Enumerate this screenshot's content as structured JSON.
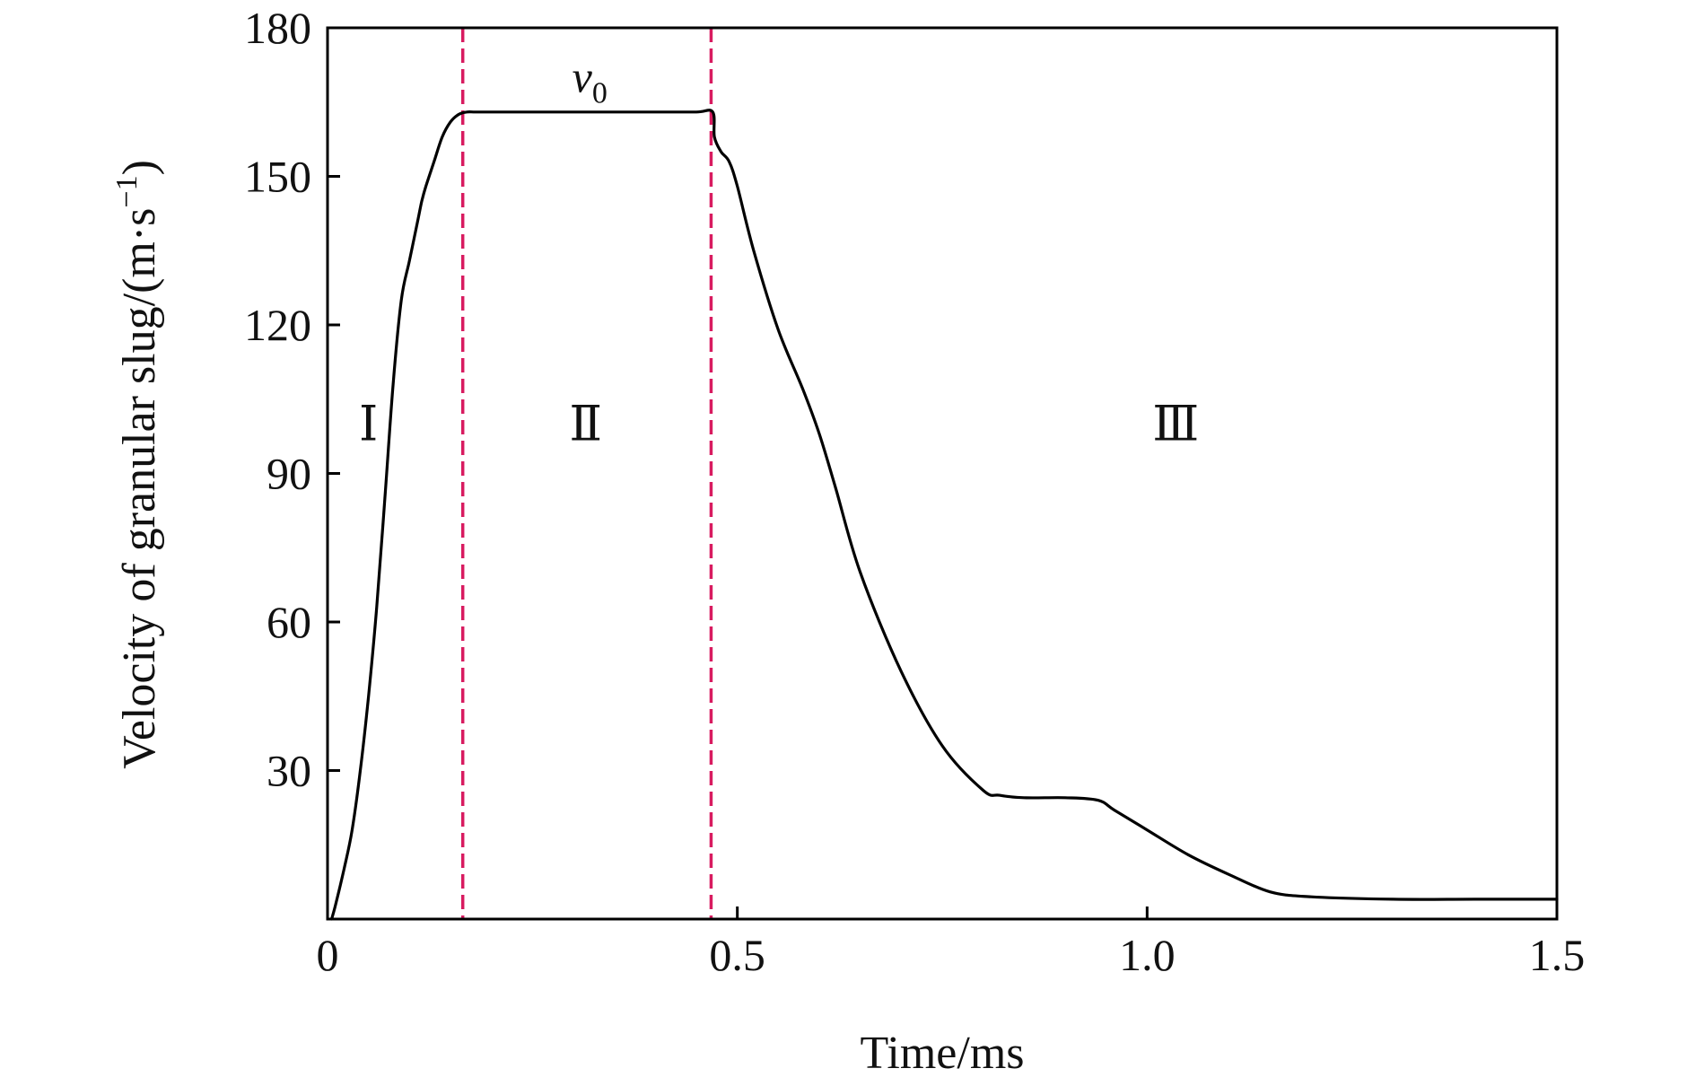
{
  "chart_data": {
    "type": "line",
    "xlabel": "Time/ms",
    "ylabel": "Velocity of granular slug/(m·s",
    "ylabel_sup": "−1",
    "ylabel_close": ")",
    "xlim": [
      0,
      1.5
    ],
    "ylim": [
      0,
      180
    ],
    "x_ticks": [
      0,
      0.5,
      1.0,
      1.5
    ],
    "x_tick_labels": [
      "0",
      "0.5",
      "1.0",
      "1.5"
    ],
    "y_ticks": [
      30,
      60,
      90,
      120,
      150,
      180
    ],
    "y_tick_labels": [
      "30",
      "60",
      "90",
      "120",
      "150",
      "180"
    ],
    "grid": false,
    "series": [
      {
        "color": "#000000",
        "x": [
          0.005,
          0.01,
          0.02,
          0.03,
          0.04,
          0.05,
          0.06,
          0.07,
          0.08,
          0.09,
          0.1,
          0.11,
          0.115,
          0.12,
          0.13,
          0.14,
          0.15,
          0.16,
          0.17,
          0.18,
          0.2,
          0.25,
          0.3,
          0.35,
          0.4,
          0.45,
          0.47,
          0.472,
          0.48,
          0.49,
          0.5,
          0.52,
          0.55,
          0.58,
          0.6,
          0.62,
          0.65,
          0.7,
          0.75,
          0.8,
          0.82,
          0.85,
          0.9,
          0.94,
          0.96,
          1.0,
          1.05,
          1.1,
          1.15,
          1.2,
          1.3,
          1.4,
          1.5
        ],
        "y": [
          0,
          3,
          10,
          18,
          30,
          45,
          63,
          85,
          108,
          125,
          133,
          141,
          145,
          148,
          153,
          158,
          161,
          162.5,
          163,
          163,
          163,
          163,
          163,
          163,
          163,
          163,
          163,
          158,
          155,
          153,
          148,
          135,
          119,
          107,
          98,
          87,
          70,
          50,
          35,
          26,
          25,
          24.5,
          24.5,
          24,
          22,
          18,
          13,
          9,
          5.5,
          4.5,
          4,
          4,
          4
        ]
      }
    ],
    "vlines": [
      {
        "x": 0.165,
        "color": "#d81b60",
        "style": "dashed"
      },
      {
        "x": 0.468,
        "color": "#d81b60",
        "style": "dashed"
      }
    ],
    "annotations": [
      {
        "text": "v",
        "sub": "0",
        "x": 0.32,
        "y": 167
      },
      {
        "text": "Ⅰ",
        "x": 0.05,
        "y": 100
      },
      {
        "text": "Ⅱ",
        "x": 0.315,
        "y": 100
      },
      {
        "text": "Ⅲ",
        "x": 1.035,
        "y": 100
      }
    ]
  }
}
